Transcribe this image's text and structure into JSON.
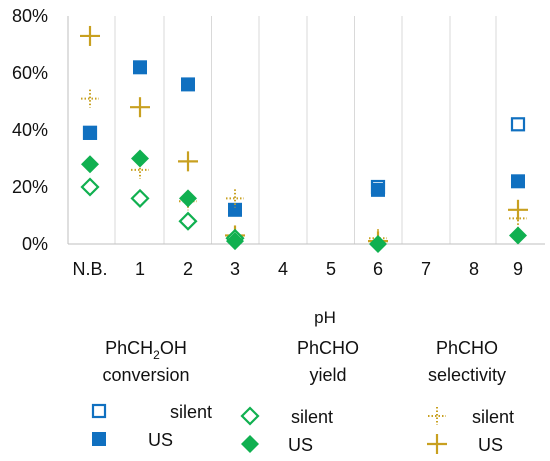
{
  "chart_data": {
    "type": "scatter",
    "xlabel": "pH",
    "ylabel": "",
    "ylim": [
      0,
      80
    ],
    "y_ticks": [
      "0%",
      "20%",
      "40%",
      "60%",
      "80%"
    ],
    "x_categories": [
      "N.B.",
      "1",
      "2",
      "3",
      "4",
      "5",
      "6",
      "7",
      "8",
      "9"
    ],
    "x_category_colors": [
      "#111111",
      "#111111",
      "#111111",
      "#111111",
      "#9a9a9a",
      "#9a9a9a",
      "#111111",
      "#9a9a9a",
      "#9a9a9a",
      "#111111"
    ],
    "grid": "vertical",
    "legend_position": "bottom",
    "legend_groups": [
      {
        "title_line1_pre": "PhCH",
        "title_line1_sub": "2",
        "title_line1_post": "OH",
        "title_line2": "conversion"
      },
      {
        "title_line1_pre": "PhCHO",
        "title_line1_sub": "",
        "title_line1_post": "",
        "title_line2": "yield"
      },
      {
        "title_line1_pre": "PhCHO",
        "title_line1_sub": "",
        "title_line1_post": "",
        "title_line2": "selectivity"
      }
    ],
    "legend_item_labels": [
      "silent",
      "US"
    ],
    "series": [
      {
        "name": "silent",
        "group": 0,
        "marker": "square-open",
        "color": "#1070c0",
        "points": [
          {
            "x": "N.B.",
            "y": 39
          },
          {
            "x": "6",
            "y": 20
          },
          {
            "x": "9",
            "y": 42
          }
        ]
      },
      {
        "name": "US",
        "group": 0,
        "marker": "square",
        "color": "#1070c0",
        "points": [
          {
            "x": "N.B.",
            "y": 39
          },
          {
            "x": "1",
            "y": 62
          },
          {
            "x": "2",
            "y": 56
          },
          {
            "x": "3",
            "y": 12
          },
          {
            "x": "6",
            "y": 19
          },
          {
            "x": "9",
            "y": 22
          }
        ]
      },
      {
        "name": "silent",
        "group": 1,
        "marker": "diamond-open",
        "color": "#10b050",
        "points": [
          {
            "x": "N.B.",
            "y": 20
          },
          {
            "x": "1",
            "y": 16
          },
          {
            "x": "2",
            "y": 8
          },
          {
            "x": "3",
            "y": 2
          }
        ]
      },
      {
        "name": "US",
        "group": 1,
        "marker": "diamond",
        "color": "#10b050",
        "points": [
          {
            "x": "N.B.",
            "y": 28
          },
          {
            "x": "1",
            "y": 30
          },
          {
            "x": "2",
            "y": 16
          },
          {
            "x": "3",
            "y": 1
          },
          {
            "x": "6",
            "y": 0
          },
          {
            "x": "9",
            "y": 3
          }
        ]
      },
      {
        "name": "silent",
        "group": 2,
        "marker": "plus-dotted",
        "color": "#c8a020",
        "points": [
          {
            "x": "N.B.",
            "y": 51
          },
          {
            "x": "1",
            "y": 26
          },
          {
            "x": "2",
            "y": 15
          },
          {
            "x": "3",
            "y": 16
          },
          {
            "x": "6",
            "y": 2
          },
          {
            "x": "9",
            "y": 9
          }
        ]
      },
      {
        "name": "US",
        "group": 2,
        "marker": "plus",
        "color": "#c8a020",
        "points": [
          {
            "x": "N.B.",
            "y": 73
          },
          {
            "x": "1",
            "y": 48
          },
          {
            "x": "2",
            "y": 29
          },
          {
            "x": "3",
            "y": 3
          },
          {
            "x": "6",
            "y": 1
          },
          {
            "x": "9",
            "y": 12
          }
        ]
      }
    ]
  }
}
